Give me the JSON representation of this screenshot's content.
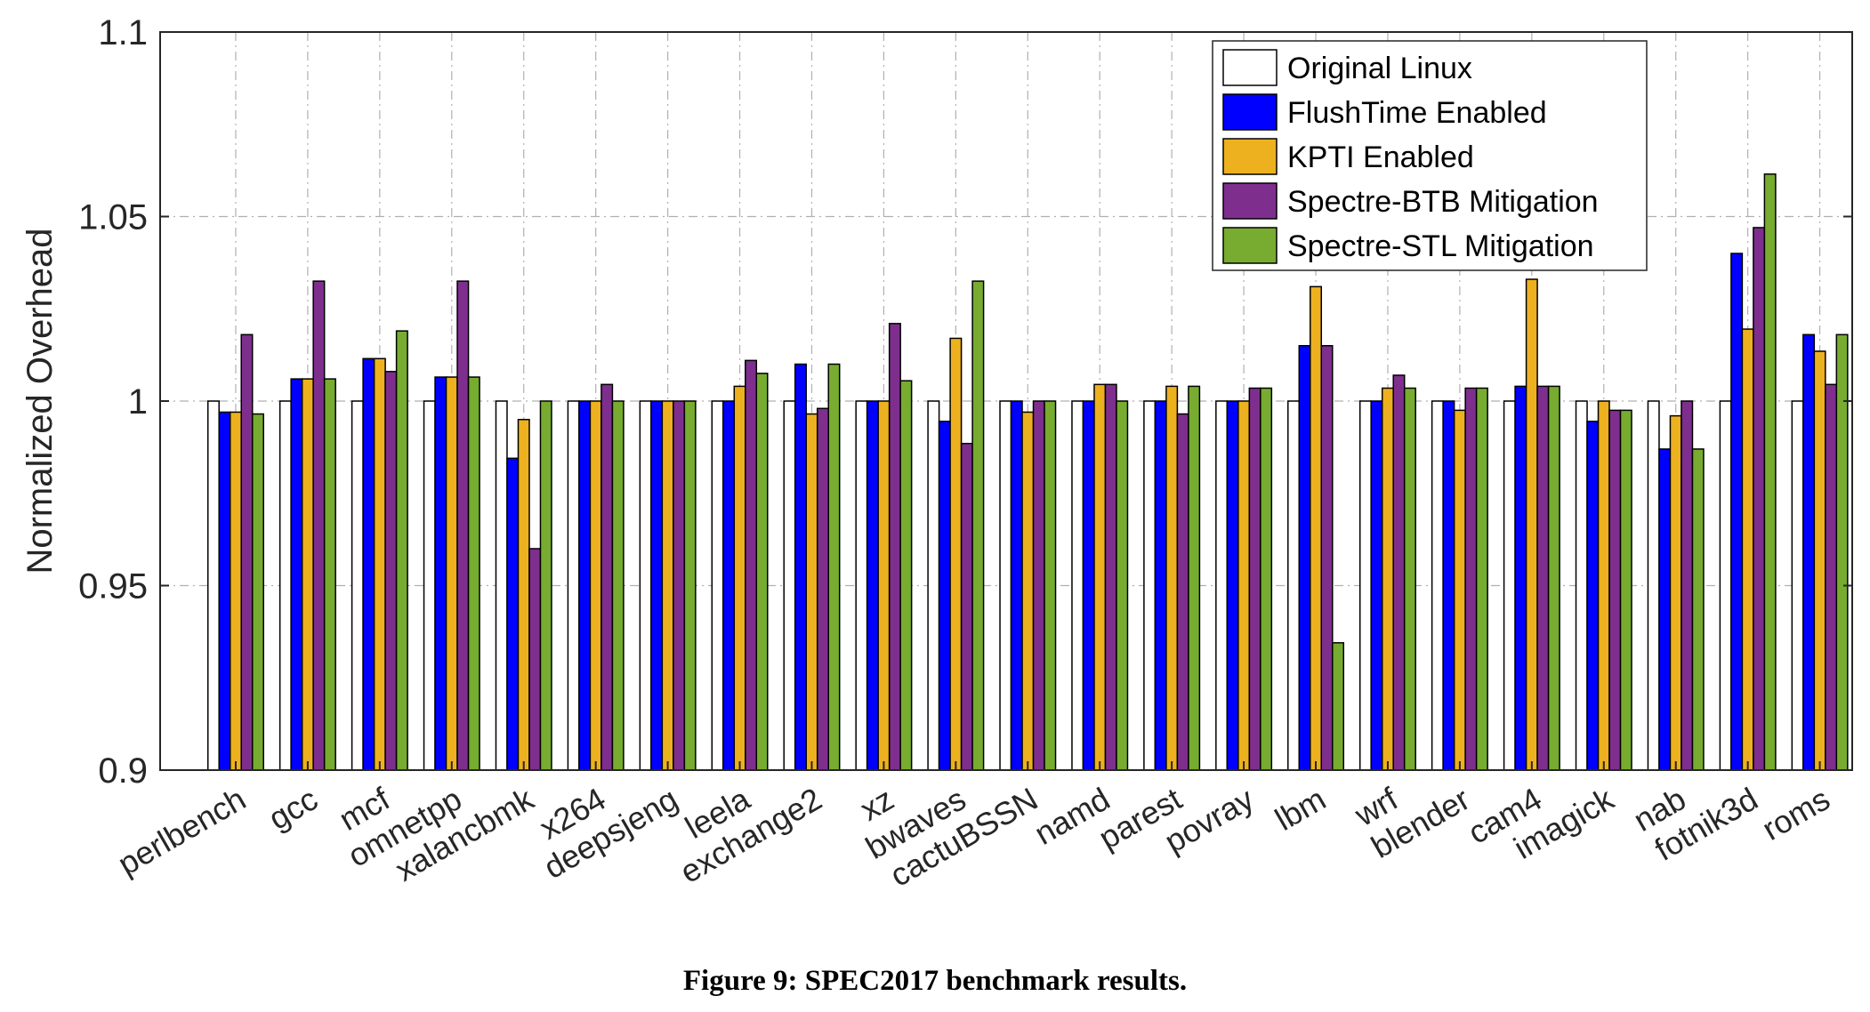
{
  "caption": "Figure 9: SPEC2017 benchmark results.",
  "chart_data": {
    "type": "bar",
    "title": "",
    "xlabel": "",
    "ylabel": "Normalized Overhead",
    "ylim": [
      0.9,
      1.1
    ],
    "yticks": [
      0.9,
      0.95,
      1,
      1.05,
      1.1
    ],
    "ytick_labels": [
      "0.9",
      "0.95",
      "1",
      "1.05",
      "1.1"
    ],
    "grid": true,
    "legend_position": "top-right",
    "categories": [
      "perlbench",
      "gcc",
      "mcf",
      "omnetpp",
      "xalancbmk",
      "x264",
      "deepsjeng",
      "leela",
      "exchange2",
      "xz",
      "bwaves",
      "cactuBSSN",
      "namd",
      "parest",
      "povray",
      "lbm",
      "wrf",
      "blender",
      "cam4",
      "imagick",
      "nab",
      "fotnik3d",
      "roms"
    ],
    "series": [
      {
        "name": "Original Linux",
        "color": "#ffffff",
        "values": [
          1,
          1,
          1,
          1,
          1,
          1,
          1,
          1,
          1,
          1,
          1,
          1,
          1,
          1,
          1,
          1,
          1,
          1,
          1,
          1,
          1,
          1,
          1
        ]
      },
      {
        "name": "FlushTime Enabled",
        "color": "#0000ff",
        "values": [
          0.997,
          1.006,
          1.0115,
          1.0065,
          0.9845,
          1,
          1,
          1,
          1.01,
          1,
          0.9945,
          1,
          1,
          1,
          1,
          1.015,
          1,
          1,
          1.004,
          0.9945,
          0.987,
          1.04,
          1.018
        ]
      },
      {
        "name": "KPTI Enabled",
        "color": "#edb120",
        "values": [
          0.997,
          1.006,
          1.0115,
          1.0065,
          0.995,
          1,
          1,
          1.004,
          0.9965,
          1,
          1.017,
          0.997,
          1.0045,
          1.004,
          1,
          1.031,
          1.0035,
          0.9975,
          1.033,
          1,
          0.996,
          1.0195,
          1.0135
        ]
      },
      {
        "name": "Spectre-BTB Mitigation",
        "color": "#7e2f8e",
        "values": [
          1.018,
          1.0325,
          1.008,
          1.0325,
          0.96,
          1.0045,
          1,
          1.011,
          0.998,
          1.021,
          0.9885,
          1,
          1.0045,
          0.9965,
          1.0035,
          1.015,
          1.007,
          1.0035,
          1.004,
          0.9975,
          1,
          1.047,
          1.0045
        ]
      },
      {
        "name": "Spectre-STL Mitigation",
        "color": "#77ac30",
        "values": [
          0.9965,
          1.006,
          1.019,
          1.0065,
          1,
          1,
          1,
          1.0075,
          1.01,
          1.0055,
          1.0325,
          1,
          1,
          1.004,
          1.0035,
          0.9345,
          1.0035,
          1.0035,
          1.004,
          0.9975,
          0.987,
          1.0615,
          1.018
        ]
      }
    ]
  }
}
